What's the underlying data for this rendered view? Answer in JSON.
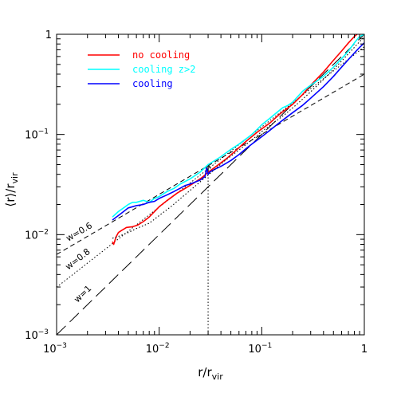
{
  "chart_data": {
    "type": "line",
    "xscale": "log",
    "yscale": "log",
    "xlim": [
      0.001,
      1
    ],
    "ylim": [
      0.001,
      1
    ],
    "xlabel": "r/r_vir",
    "ylabel": "⟨r⟩/r_vir",
    "grid": false,
    "legend_position": "top-left",
    "x_ticks": [
      {
        "value": 0.001,
        "base": "10",
        "exp": "−3"
      },
      {
        "value": 0.01,
        "base": "10",
        "exp": "−2"
      },
      {
        "value": 0.1,
        "base": "10",
        "exp": "−1"
      },
      {
        "value": 1,
        "base": "1",
        "exp": ""
      }
    ],
    "y_ticks": [
      {
        "value": 0.001,
        "base": "10",
        "exp": "−3"
      },
      {
        "value": 0.01,
        "base": "10",
        "exp": "−2"
      },
      {
        "value": 0.1,
        "base": "10",
        "exp": "−1"
      },
      {
        "value": 1,
        "base": "1",
        "exp": ""
      }
    ],
    "series": [
      {
        "name": "no cooling",
        "color": "#ff0000",
        "style": "solid",
        "x": [
          0.0035,
          0.0036,
          0.0038,
          0.004,
          0.0043,
          0.0048,
          0.0055,
          0.0062,
          0.007,
          0.008,
          0.009,
          0.01,
          0.012,
          0.015,
          0.018,
          0.022,
          0.026,
          0.03,
          0.036,
          0.045,
          0.055,
          0.07,
          0.09,
          0.12,
          0.15,
          0.2,
          0.25,
          0.3,
          0.4,
          0.5,
          0.6,
          0.7,
          0.8,
          0.9,
          1.0
        ],
        "y": [
          0.0085,
          0.008,
          0.0095,
          0.0105,
          0.011,
          0.0118,
          0.012,
          0.0125,
          0.0135,
          0.015,
          0.017,
          0.019,
          0.022,
          0.026,
          0.029,
          0.033,
          0.037,
          0.042,
          0.048,
          0.057,
          0.068,
          0.085,
          0.105,
          0.13,
          0.16,
          0.2,
          0.25,
          0.31,
          0.42,
          0.55,
          0.68,
          0.82,
          0.95,
          1.05,
          1.0
        ]
      },
      {
        "name": "cooling z>2",
        "color": "#00ffff",
        "style": "solid",
        "x": [
          0.0035,
          0.004,
          0.0045,
          0.005,
          0.0055,
          0.006,
          0.007,
          0.008,
          0.009,
          0.01,
          0.012,
          0.014,
          0.016,
          0.018,
          0.02,
          0.025,
          0.03,
          0.04,
          0.05,
          0.06,
          0.07,
          0.08,
          0.09,
          0.1,
          0.12,
          0.14,
          0.16,
          0.18,
          0.2,
          0.25,
          0.3,
          0.4,
          0.5,
          0.6,
          0.7,
          0.8,
          0.9,
          1.0
        ],
        "y": [
          0.015,
          0.017,
          0.0185,
          0.02,
          0.021,
          0.021,
          0.022,
          0.021,
          0.023,
          0.024,
          0.027,
          0.029,
          0.032,
          0.034,
          0.036,
          0.042,
          0.05,
          0.06,
          0.071,
          0.08,
          0.09,
          0.1,
          0.112,
          0.125,
          0.145,
          0.165,
          0.185,
          0.195,
          0.21,
          0.27,
          0.31,
          0.38,
          0.47,
          0.57,
          0.68,
          0.82,
          0.95,
          1.0
        ]
      },
      {
        "name": "cooling",
        "color": "#0000ff",
        "style": "solid",
        "x": [
          0.0035,
          0.004,
          0.0045,
          0.005,
          0.0055,
          0.006,
          0.007,
          0.008,
          0.009,
          0.01,
          0.012,
          0.014,
          0.016,
          0.018,
          0.02,
          0.025,
          0.028,
          0.029,
          0.03,
          0.031,
          0.035,
          0.04,
          0.05,
          0.06,
          0.07,
          0.08,
          0.1,
          0.12,
          0.15,
          0.2,
          0.25,
          0.3,
          0.4,
          0.5,
          0.6,
          0.7,
          0.8,
          0.9,
          1.0
        ],
        "y": [
          0.014,
          0.0155,
          0.017,
          0.0185,
          0.019,
          0.0195,
          0.02,
          0.021,
          0.0215,
          0.023,
          0.025,
          0.027,
          0.029,
          0.031,
          0.032,
          0.035,
          0.038,
          0.046,
          0.04,
          0.042,
          0.045,
          0.048,
          0.055,
          0.063,
          0.072,
          0.08,
          0.095,
          0.11,
          0.132,
          0.165,
          0.195,
          0.23,
          0.3,
          0.38,
          0.47,
          0.56,
          0.65,
          0.74,
          0.82
        ]
      },
      {
        "name": "",
        "color": "#000000",
        "style": "dotted",
        "x": [
          0.0035,
          0.004,
          0.005,
          0.006,
          0.008,
          0.01,
          0.013,
          0.017,
          0.022,
          0.028,
          0.035,
          0.045,
          0.06,
          0.08,
          0.1,
          0.13,
          0.17,
          0.22,
          0.28,
          0.35,
          0.45,
          0.6,
          0.8,
          1.0
        ],
        "y": [
          0.0092,
          0.0096,
          0.0105,
          0.0115,
          0.013,
          0.0155,
          0.019,
          0.024,
          0.03,
          0.037,
          0.045,
          0.056,
          0.07,
          0.088,
          0.107,
          0.13,
          0.16,
          0.2,
          0.25,
          0.31,
          0.4,
          0.54,
          0.74,
          0.95
        ]
      }
    ],
    "reference_lines": [
      {
        "label": "w=0.6",
        "style": "short-dash",
        "exponent": 0.6,
        "coeff": 0.4
      },
      {
        "label": "w=0.8",
        "style": "dotted",
        "exponent": 0.8,
        "coeff": 0.75
      },
      {
        "label": "w=1",
        "style": "long-dash",
        "exponent": 1.0,
        "coeff": 1.0
      }
    ],
    "vertical_marker": {
      "x": 0.03,
      "style": "dotted"
    },
    "arrow": {
      "x": 0.03,
      "y_from": 0.042,
      "y_to": 0.05
    }
  }
}
